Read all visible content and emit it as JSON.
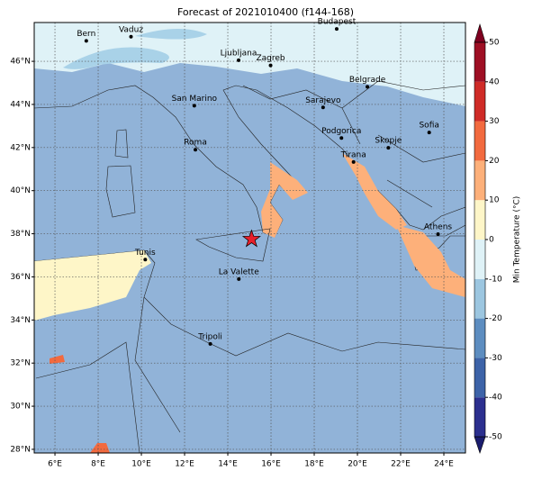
{
  "map": {
    "title": "Forecast of 2021010400 (f144-168)",
    "xlim": [
      5.04,
      25
    ],
    "ylim": [
      27.83,
      47.8
    ],
    "xticks": [
      {
        "value": 6,
        "label": "6°E"
      },
      {
        "value": 8,
        "label": "8°E"
      },
      {
        "value": 10,
        "label": "10°E"
      },
      {
        "value": 12,
        "label": "12°E"
      },
      {
        "value": 14,
        "label": "14°E"
      },
      {
        "value": 16,
        "label": "16°E"
      },
      {
        "value": 18,
        "label": "18°E"
      },
      {
        "value": 20,
        "label": "20°E"
      },
      {
        "value": 22,
        "label": "22°E"
      },
      {
        "value": 24,
        "label": "24°E"
      }
    ],
    "yticks": [
      {
        "value": 28,
        "label": "28°N"
      },
      {
        "value": 30,
        "label": "30°N"
      },
      {
        "value": 32,
        "label": "32°N"
      },
      {
        "value": 34,
        "label": "34°N"
      },
      {
        "value": 36,
        "label": "36°N"
      },
      {
        "value": 38,
        "label": "38°N"
      },
      {
        "value": 40,
        "label": "40°N"
      },
      {
        "value": 42,
        "label": "42°N"
      },
      {
        "value": 44,
        "label": "44°N"
      },
      {
        "value": 46,
        "label": "46°N"
      }
    ],
    "cities": [
      {
        "name": "Bern",
        "lon": 7.45,
        "lat": 46.95
      },
      {
        "name": "Vaduz",
        "lon": 9.52,
        "lat": 47.14
      },
      {
        "name": "Budapest",
        "lon": 19.04,
        "lat": 47.5
      },
      {
        "name": "Ljubljana",
        "lon": 14.5,
        "lat": 46.05
      },
      {
        "name": "Zagreb",
        "lon": 15.98,
        "lat": 45.81
      },
      {
        "name": "Belgrade",
        "lon": 20.46,
        "lat": 44.82
      },
      {
        "name": "San Marino",
        "lon": 12.45,
        "lat": 43.94
      },
      {
        "name": "Sarajevo",
        "lon": 18.41,
        "lat": 43.86
      },
      {
        "name": "Sofia",
        "lon": 23.32,
        "lat": 42.7
      },
      {
        "name": "Podgorica",
        "lon": 19.26,
        "lat": 42.44
      },
      {
        "name": "Skopje",
        "lon": 21.43,
        "lat": 41.99
      },
      {
        "name": "Roma",
        "lon": 12.5,
        "lat": 41.9
      },
      {
        "name": "Tirana",
        "lon": 19.82,
        "lat": 41.33
      },
      {
        "name": "Athens",
        "lon": 23.73,
        "lat": 37.98
      },
      {
        "name": "Tunis",
        "lon": 10.18,
        "lat": 36.8
      },
      {
        "name": "La Valette",
        "lon": 14.51,
        "lat": 35.9
      },
      {
        "name": "Tripoli",
        "lon": 13.19,
        "lat": 32.89
      }
    ],
    "marker": {
      "lon": 15.1,
      "lat": 37.75,
      "color": "#e8202a"
    },
    "colorbar": {
      "label": "Min Temperature (°C)",
      "lim": [
        -50,
        50
      ],
      "ticks": [
        -50,
        -40,
        -30,
        -20,
        -10,
        0,
        10,
        20,
        30,
        40,
        50
      ],
      "colors": [
        "#2b2f8e",
        "#3d63a8",
        "#5d8dc0",
        "#9cc6e0",
        "#dff2f7",
        "#fef6c8",
        "#fdb07a",
        "#f26a3f",
        "#cf2b27",
        "#9e0f24"
      ],
      "under": "#1a1c6e",
      "over": "#7f0020"
    }
  }
}
